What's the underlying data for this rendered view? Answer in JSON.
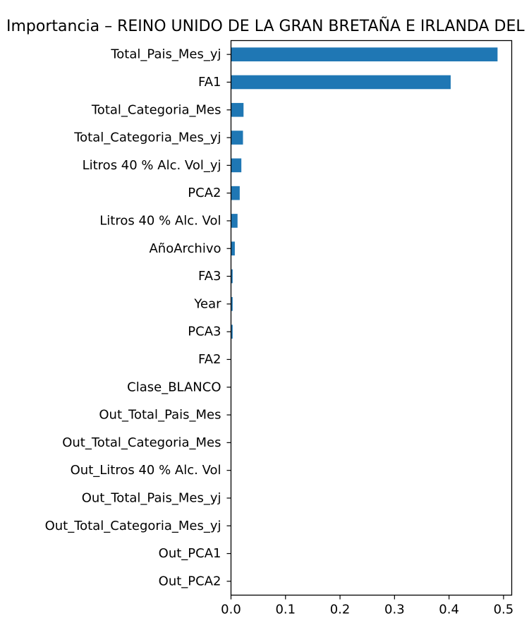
{
  "chart_data": {
    "type": "bar",
    "orientation": "horizontal",
    "title": "Importancia – REINO UNIDO DE LA GRAN BRETAÑA E IRLANDA DEL NORTE",
    "xlabel": "",
    "ylabel": "",
    "xlim": [
      0,
      0.515
    ],
    "xticks": [
      "0.0",
      "0.1",
      "0.2",
      "0.3",
      "0.4",
      "0.5"
    ],
    "grid": false,
    "bar_color": "#1f77b4",
    "categories": [
      "Total_Pais_Mes_yj",
      "FA1",
      "Total_Categoria_Mes",
      "Total_Categoria_Mes_yj",
      "Litros 40 % Alc. Vol_yj",
      "PCA2",
      "Litros 40 % Alc. Vol",
      "AñoArchivo",
      "FA3",
      "Year",
      "PCA3",
      "FA2",
      "Clase_BLANCO",
      "Out_Total_Pais_Mes",
      "Out_Total_Categoria_Mes",
      "Out_Litros 40 % Alc. Vol",
      "Out_Total_Pais_Mes_yj",
      "Out_Total_Categoria_Mes_yj",
      "Out_PCA1",
      "Out_PCA2"
    ],
    "values": [
      0.489,
      0.403,
      0.023,
      0.022,
      0.019,
      0.016,
      0.012,
      0.007,
      0.003,
      0.003,
      0.003,
      0.0005,
      0.0003,
      0.0002,
      0.0002,
      0.0002,
      0.0002,
      0.0002,
      0.0001,
      0.0001
    ]
  }
}
